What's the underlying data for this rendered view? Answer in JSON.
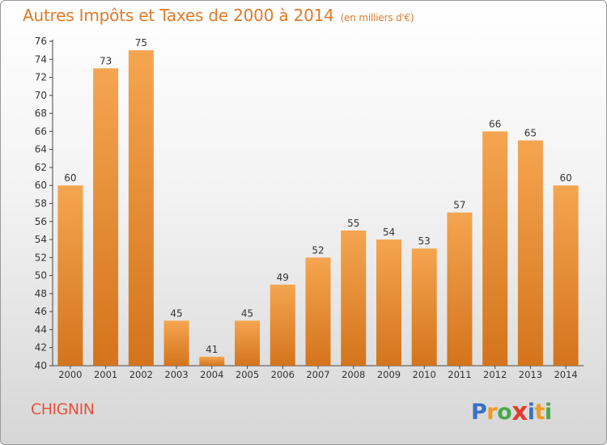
{
  "title": "Autres Impôts et Taxes de 2000 à 2014",
  "subtitle": "(en milliers d'€)",
  "commune": "CHIGNIN",
  "logo": {
    "letters": [
      "P",
      "r",
      "o",
      "x",
      "i",
      "t",
      "i"
    ],
    "colors": [
      "#3a6fc4",
      "#f29a1e",
      "#4aa84a",
      "#e23b2e",
      "#3a6fc4",
      "#f29a1e",
      "#4aa84a"
    ]
  },
  "colors": {
    "bar_top": "#f5a550",
    "bar_bottom": "#d4741c",
    "title": "#e07a26",
    "commune": "#e5533d"
  },
  "chart_data": {
    "type": "bar",
    "title": "Autres Impôts et Taxes de 2000 à 2014",
    "subtitle": "(en milliers d'€)",
    "categories": [
      "2000",
      "2001",
      "2002",
      "2003",
      "2004",
      "2005",
      "2006",
      "2007",
      "2008",
      "2009",
      "2010",
      "2011",
      "2012",
      "2013",
      "2014"
    ],
    "values": [
      60,
      73,
      75,
      45,
      41,
      45,
      49,
      52,
      55,
      54,
      53,
      57,
      66,
      65,
      60
    ],
    "ylim": [
      40,
      76
    ],
    "yticks": [
      40,
      42,
      44,
      46,
      48,
      50,
      52,
      54,
      56,
      58,
      60,
      62,
      64,
      66,
      68,
      70,
      72,
      74,
      76
    ],
    "grid": false,
    "xlabel": "",
    "ylabel": ""
  }
}
